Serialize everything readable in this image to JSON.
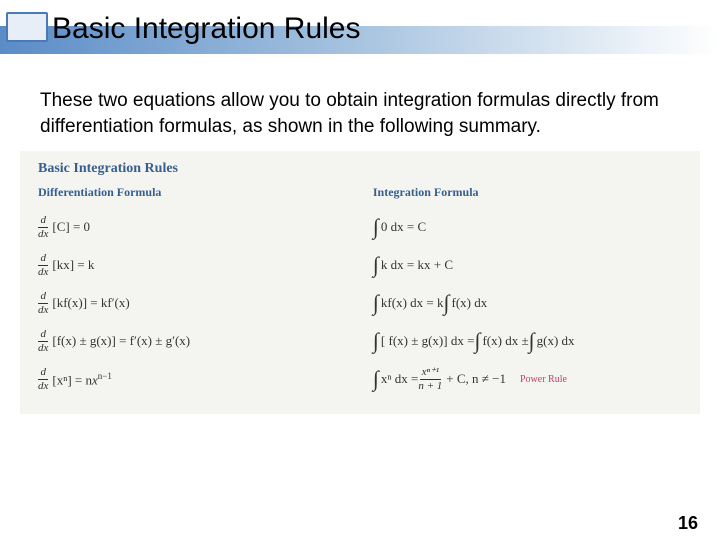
{
  "title": "Basic Integration Rules",
  "intro": "These two equations allow you to obtain integration formulas directly from differentiation formulas, as shown in the following summary.",
  "panel": {
    "heading": "Basic Integration Rules",
    "left_header": "Differentiation Formula",
    "right_header": "Integration Formula",
    "power_rule_label": "Power Rule",
    "colors": {
      "panel_bg": "#f4f4f1",
      "heading_color": "#365f8f",
      "power_rule_color": "#c04070",
      "title_bar_gradient_start": "#5a8cc7",
      "title_box_border": "#4a7ab5"
    },
    "diff": {
      "r1": "[C] = 0",
      "r2": "[kx] = k",
      "r3": "[kf(x)] = kf′(x)",
      "r4": "[f(x) ± g(x)] = f′(x) ± g′(x)",
      "r5_lhs": "[xⁿ] = n",
      "r5_exp": "n−1"
    },
    "integ": {
      "r1": "0 dx = C",
      "r2": "k dx = kx + C",
      "r3_lhs": "kf(x) dx = k",
      "r3_rhs": "f(x) dx",
      "r4_lhs": "[ f(x) ± g(x)] dx = ",
      "r4_mid": "f(x) dx ± ",
      "r4_rhs": "g(x) dx",
      "r5_lhs": "xⁿ dx = ",
      "r5_num": "xⁿ⁺¹",
      "r5_den": "n + 1",
      "r5_tail": " + C,   n ≠ −1"
    }
  },
  "page_number": "16"
}
